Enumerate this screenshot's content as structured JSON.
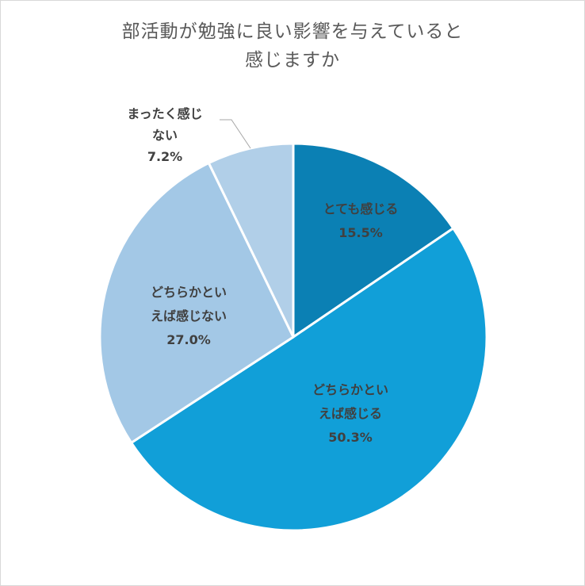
{
  "title_lines": [
    "部活動が勉強に良い影響を与えていると",
    "感じますか"
  ],
  "colors": {
    "slice1": "#0b80b4",
    "slice2": "#119fd8",
    "slice3": "#a3c8e6",
    "slice4": "#b1cfe8",
    "label": "#404040",
    "leader": "#a6a6a6"
  },
  "chart_data": {
    "type": "pie",
    "title": "部活動が勉強に良い影響を与えていると感じますか",
    "slices": [
      {
        "label_lines": [
          "とても感じる"
        ],
        "value": 15.5,
        "value_label": "15.5%"
      },
      {
        "label_lines": [
          "どちらかとい",
          "えば感じる"
        ],
        "value": 50.3,
        "value_label": "50.3%"
      },
      {
        "label_lines": [
          "どちらかとい",
          "えば感じない"
        ],
        "value": 27.0,
        "value_label": "27.0%"
      },
      {
        "label_lines": [
          "まったく感じ",
          "ない"
        ],
        "value": 7.2,
        "value_label": "7.2%"
      }
    ]
  }
}
